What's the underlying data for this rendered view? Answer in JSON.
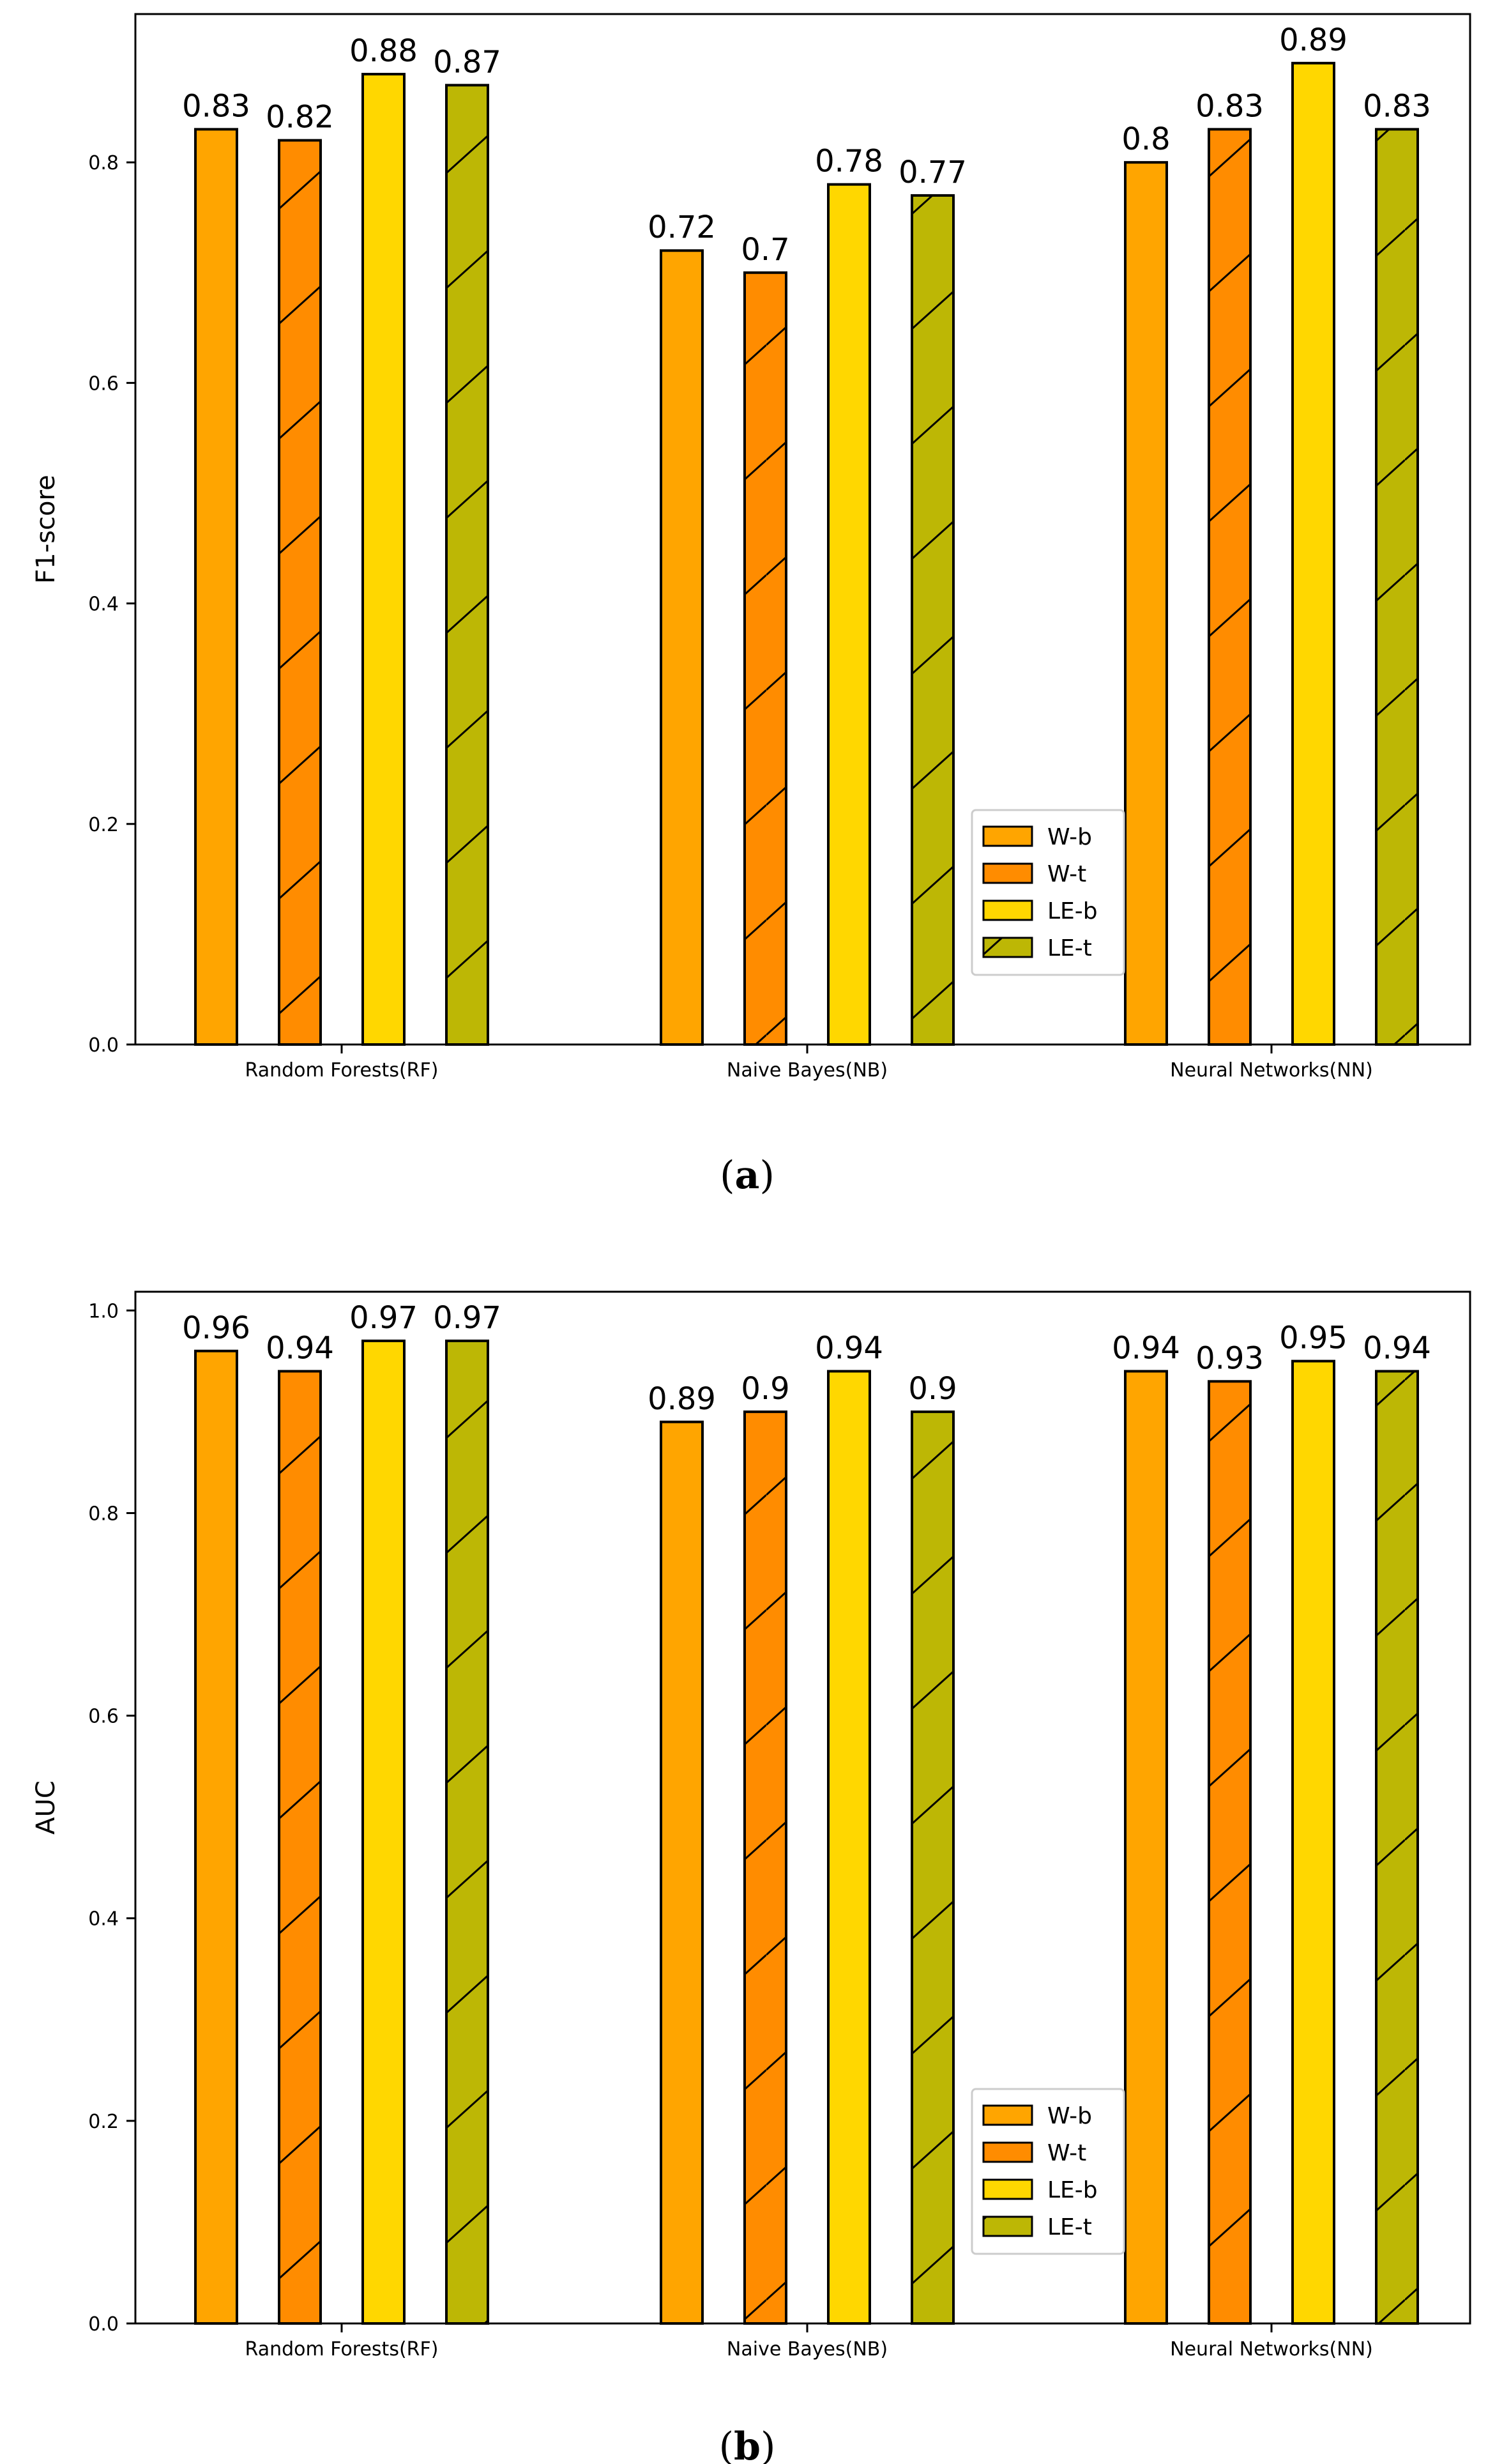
{
  "colors": {
    "W-b": "#FFA500",
    "W-t": "#FF8C00",
    "LE-b": "#FFD700",
    "LE-t": "#BDB705",
    "edge": "#000000"
  },
  "legend": [
    {
      "label": "W-b",
      "hatch": false
    },
    {
      "label": "W-t",
      "hatch": true
    },
    {
      "label": "LE-b",
      "hatch": false
    },
    {
      "label": "LE-t",
      "hatch": true
    }
  ],
  "chart_data": [
    {
      "type": "bar",
      "caption_letter": "a",
      "caption_open": "(",
      "caption_close": ")",
      "title": "",
      "xlabel": "",
      "ylabel": "F1-score",
      "categories": [
        "Random Forests(RF)",
        "Naive Bayes(NB)",
        "Neural Networks(NN)"
      ],
      "series": [
        {
          "name": "W-b",
          "values": [
            0.83,
            0.72,
            0.8
          ],
          "labels": [
            "0.83",
            "0.72",
            "0.8"
          ]
        },
        {
          "name": "W-t",
          "values": [
            0.82,
            0.7,
            0.83
          ],
          "labels": [
            "0.82",
            "0.7",
            "0.83"
          ]
        },
        {
          "name": "LE-b",
          "values": [
            0.88,
            0.78,
            0.89
          ],
          "labels": [
            "0.88",
            "0.78",
            "0.89"
          ]
        },
        {
          "name": "LE-t",
          "values": [
            0.87,
            0.77,
            0.83
          ],
          "labels": [
            "0.87",
            "0.77",
            "0.83"
          ]
        }
      ],
      "ylim": [
        0,
        0.9345
      ],
      "yticks": [
        0.0,
        0.2,
        0.4,
        0.6,
        0.8
      ],
      "ytick_labels": [
        "0.0",
        "0.2",
        "0.4",
        "0.6",
        "0.8"
      ],
      "grid": false,
      "legend_position": "lower-right"
    },
    {
      "type": "bar",
      "caption_letter": "b",
      "caption_open": "(",
      "caption_close": ")",
      "title": "",
      "xlabel": "",
      "ylabel": "AUC",
      "categories": [
        "Random Forests(RF)",
        "Naive Bayes(NB)",
        "Neural Networks(NN)"
      ],
      "series": [
        {
          "name": "W-b",
          "values": [
            0.96,
            0.89,
            0.94
          ],
          "labels": [
            "0.96",
            "0.89",
            "0.94"
          ]
        },
        {
          "name": "W-t",
          "values": [
            0.94,
            0.9,
            0.93
          ],
          "labels": [
            "0.94",
            "0.9",
            "0.93"
          ]
        },
        {
          "name": "LE-b",
          "values": [
            0.97,
            0.94,
            0.95
          ],
          "labels": [
            "0.97",
            "0.94",
            "0.95"
          ]
        },
        {
          "name": "LE-t",
          "values": [
            0.97,
            0.9,
            0.94
          ],
          "labels": [
            "0.97",
            "0.9",
            "0.94"
          ]
        }
      ],
      "ylim": [
        0,
        1.0185
      ],
      "yticks": [
        0.0,
        0.2,
        0.4,
        0.6,
        0.8,
        1.0
      ],
      "ytick_labels": [
        "0.0",
        "0.2",
        "0.4",
        "0.6",
        "0.8",
        "1.0"
      ],
      "grid": false,
      "legend_position": "lower-right"
    }
  ]
}
